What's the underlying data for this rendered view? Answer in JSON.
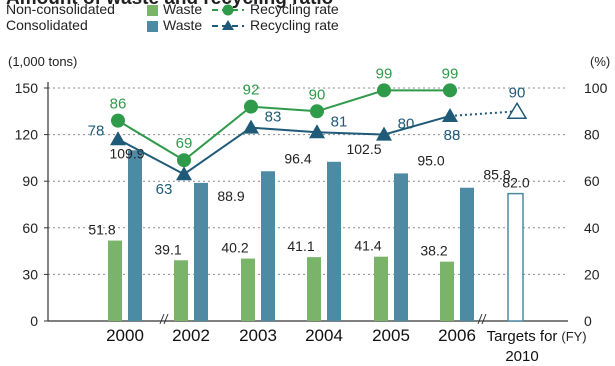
{
  "chart_data": {
    "type": "bar+line",
    "title": "Amount of waste and recycling ratio",
    "legend": {
      "rows": [
        "Non-consolidated",
        "Consolidated"
      ],
      "waste_label": "Waste",
      "rate_label": "Recycling rate"
    },
    "categories": [
      "2000",
      "2002",
      "2003",
      "2004",
      "2005",
      "2006",
      "Targets for 2010"
    ],
    "left_axis": {
      "unit": "(1,000 tons)",
      "ticks": [
        0,
        30,
        60,
        90,
        120,
        150
      ],
      "ylim": [
        0,
        150
      ]
    },
    "right_axis": {
      "unit": "(%)",
      "ticks": [
        0,
        20,
        40,
        60,
        80,
        100
      ],
      "ylim": [
        0,
        100
      ]
    },
    "x_unit": "(FY)",
    "series": [
      {
        "name": "Non-consolidated Waste",
        "kind": "bar",
        "axis": "left",
        "color": "#7ab46a",
        "values": [
          51.8,
          39.1,
          40.2,
          41.1,
          41.4,
          38.2,
          null
        ]
      },
      {
        "name": "Consolidated Waste",
        "kind": "bar",
        "axis": "left",
        "color": "#4d8aa3",
        "values": [
          109.9,
          88.9,
          96.4,
          102.5,
          95.0,
          85.8,
          null
        ]
      },
      {
        "name": "Non-consolidated Recycling rate",
        "kind": "line",
        "axis": "right",
        "color": "#2e9a4a",
        "values": [
          86,
          69,
          92,
          90,
          99,
          99,
          null
        ]
      },
      {
        "name": "Consolidated Recycling rate",
        "kind": "line",
        "axis": "right",
        "color": "#1f5a78",
        "values": [
          78,
          63,
          83,
          81,
          80,
          88,
          90
        ]
      }
    ],
    "target": {
      "waste": 82.0,
      "waste_label": "82.0",
      "rate": 90,
      "rate_label": "90"
    },
    "bar_labels_nc": [
      "51.8",
      "39.1",
      "40.2",
      "41.1",
      "41.4",
      "38.2"
    ],
    "bar_labels_c": [
      "109.9",
      "88.9",
      "96.4",
      "102.5",
      "95.0",
      "85.8"
    ],
    "grid": true
  }
}
